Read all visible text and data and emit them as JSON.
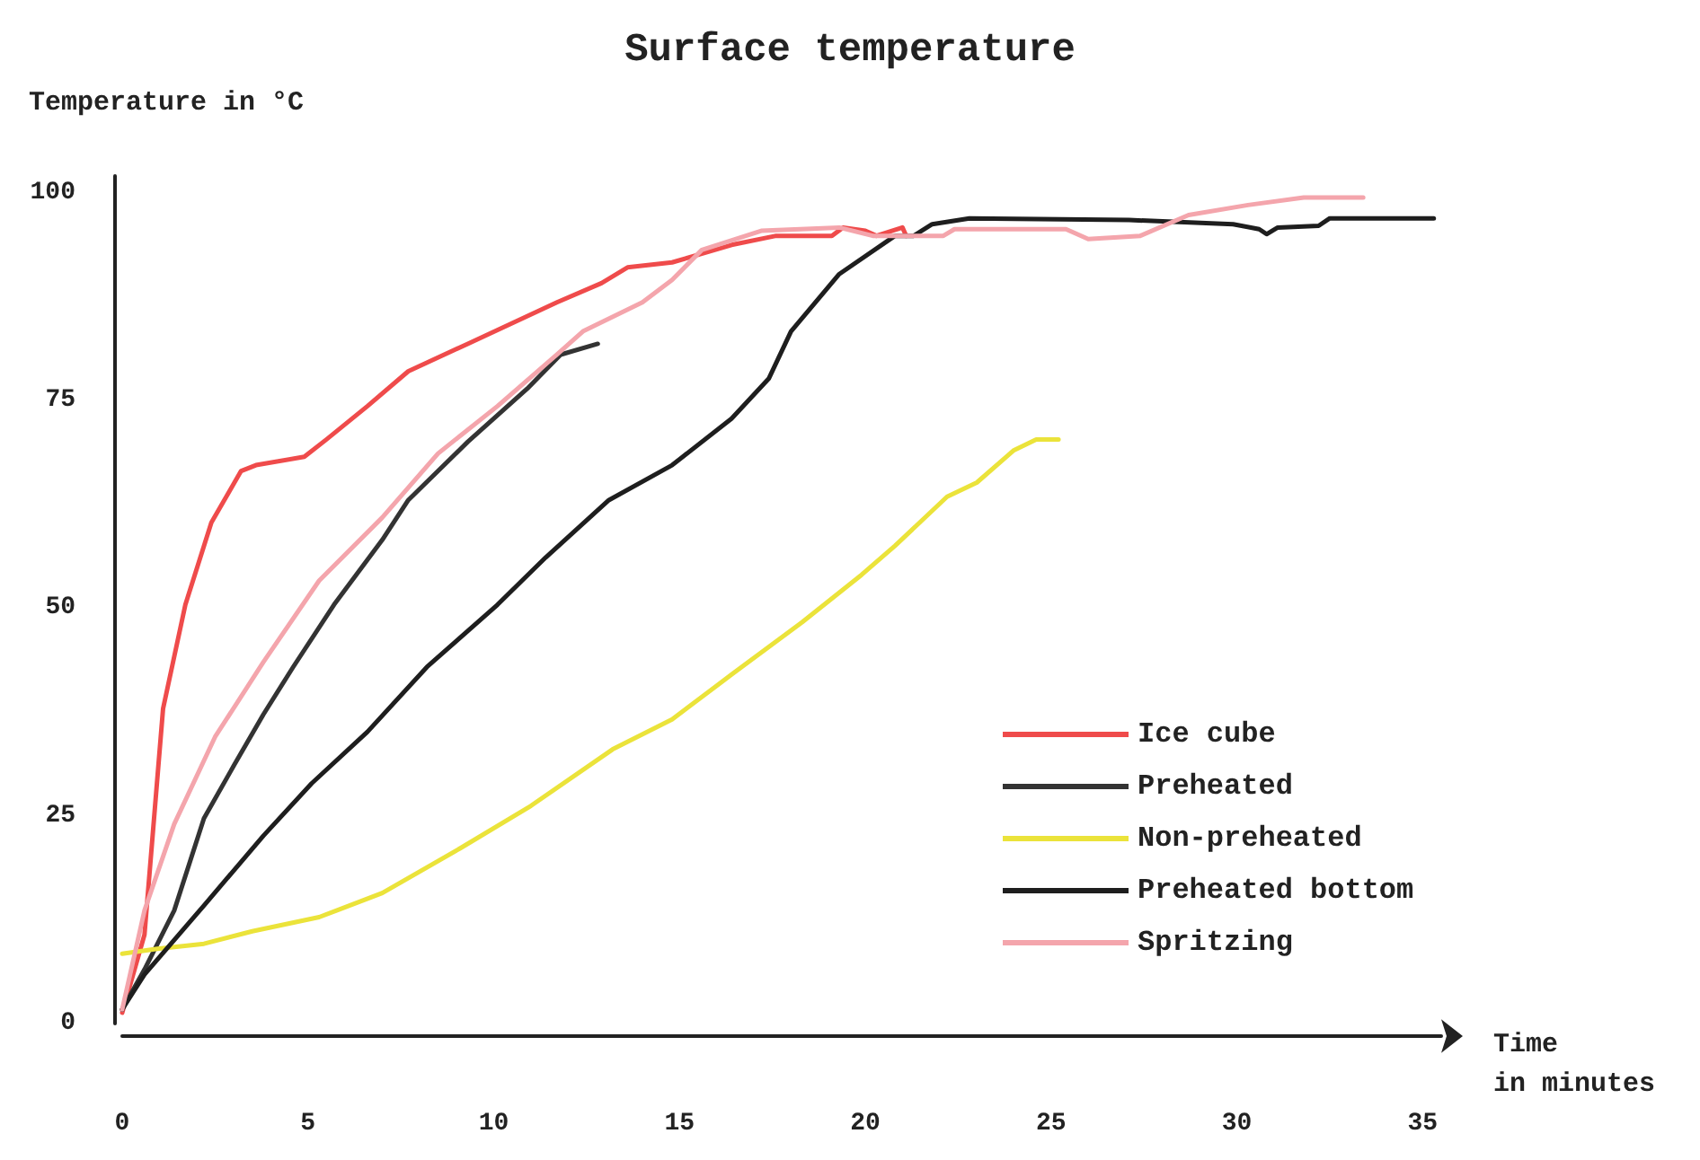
{
  "chart_data": {
    "type": "line",
    "title": "Surface temperature",
    "xlabel": "Time\nin minutes",
    "ylabel": "Temperature in °C",
    "xlim": [
      0,
      35.5
    ],
    "ylim": [
      0,
      102
    ],
    "xticks": [
      0,
      5,
      10,
      15,
      20,
      25,
      30,
      35
    ],
    "yticks": [
      0,
      25,
      50,
      75,
      100
    ],
    "grid": false,
    "legend": "right",
    "marker": "none",
    "line_style": "solid",
    "series": [
      {
        "name": "Ice cube",
        "color": "#ef4b4b",
        "x": [
          0,
          0.6,
          1.1,
          1.7,
          2.4,
          3.2,
          3.6,
          4.9,
          5.5,
          6.6,
          7.7,
          9.3,
          11.7,
          12.9,
          13.6,
          14.8,
          16.4,
          17.6,
          19.1,
          19.4,
          20,
          20.3,
          21,
          21.1
        ],
        "values": [
          1.3,
          10.7,
          37.9,
          50.4,
          60.3,
          66.5,
          67.2,
          68.2,
          70.3,
          74.3,
          78.5,
          81.8,
          86.8,
          89.1,
          91,
          91.6,
          93.7,
          94.8,
          94.8,
          95.8,
          95.4,
          94.8,
          95.8,
          94.8
        ]
      },
      {
        "name": "Preheated",
        "color": "#333333",
        "x": [
          0,
          0.6,
          1.4,
          2.2,
          3,
          3.8,
          4.6,
          5.7,
          7,
          7.7,
          9.3,
          10.9,
          11.8,
          12.8
        ],
        "values": [
          1.7,
          6.5,
          13.6,
          24.7,
          31,
          37.2,
          42.9,
          50.4,
          58.2,
          63,
          70,
          76.4,
          80.5,
          81.8
        ]
      },
      {
        "name": "Non-preheated",
        "color": "#ebe33a",
        "x": [
          0,
          0.95,
          2.2,
          3.5,
          5.3,
          7,
          9.1,
          11,
          13.2,
          14.8,
          16.4,
          18.3,
          19.9,
          20.8,
          22.2,
          23,
          24,
          24.6,
          25.2
        ],
        "values": [
          8.4,
          9,
          9.6,
          11.1,
          12.8,
          15.7,
          21.1,
          26.2,
          33,
          36.6,
          42,
          48.3,
          54,
          57.5,
          63.4,
          65.1,
          69,
          70.3,
          70.3
        ]
      },
      {
        "name": "Preheated bottom",
        "color": "#1e1e1e",
        "x": [
          0,
          0.6,
          2.2,
          3.8,
          5.1,
          6.6,
          8.2,
          10.1,
          11.4,
          13.1,
          14.8,
          16.4,
          17.4,
          18,
          19.3,
          20.8,
          21.3,
          21.8,
          22.8,
          27.1,
          29.9,
          30.6,
          30.8,
          31.1,
          32.2,
          32.5,
          35.3
        ],
        "values": [
          1.7,
          5.9,
          14.2,
          22.6,
          28.9,
          35.1,
          42.9,
          50.4,
          56.1,
          63,
          67.2,
          72.8,
          77.6,
          83.3,
          90.2,
          94.8,
          94.8,
          96.2,
          96.9,
          96.7,
          96.2,
          95.6,
          95,
          95.8,
          96,
          96.9,
          96.9
        ]
      },
      {
        "name": "Spritzing",
        "color": "#f4a5ac",
        "x": [
          0,
          0.6,
          1.4,
          2.5,
          3.8,
          5.3,
          7,
          8.5,
          10.1,
          11.7,
          12.4,
          14,
          14.8,
          15.6,
          17.2,
          19.3,
          20.2,
          22.1,
          22.4,
          25.4,
          26,
          27.4,
          28.7,
          30.3,
          31.8,
          33.4
        ],
        "values": [
          1.7,
          13.6,
          24,
          34.5,
          43.5,
          53.3,
          60.9,
          68.6,
          74.3,
          80.5,
          83.3,
          86.8,
          89.5,
          93.1,
          95.4,
          95.8,
          94.8,
          94.8,
          95.6,
          95.6,
          94.4,
          94.8,
          97.3,
          98.5,
          99.4,
          99.4
        ]
      }
    ]
  }
}
